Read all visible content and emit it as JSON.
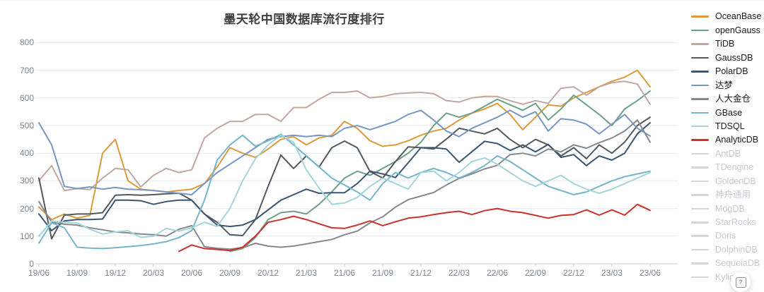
{
  "title": "墨天轮中国数据库流行度排行",
  "help_button": {
    "glyph": "?"
  },
  "axis_colors": {
    "grid": "#e4eaf2",
    "axis_line": "#c9cdd3",
    "tick_label": "#7d8592"
  },
  "chart_data": {
    "type": "line",
    "title": "墨天轮中国数据库流行度排行",
    "xlabel": "",
    "ylabel": "",
    "ylim": [
      0,
      800
    ],
    "y_ticks": [
      0,
      100,
      200,
      300,
      400,
      500,
      600,
      700,
      800
    ],
    "grid": true,
    "legend_position": "right",
    "x_tick_labels": [
      "19/06",
      "19/09",
      "19/12",
      "20/03",
      "20/06",
      "20/09",
      "20/12",
      "21/03",
      "21/06",
      "21/09",
      "21/12",
      "22/03",
      "22/06",
      "22/09",
      "22/12",
      "23/03",
      "23/06"
    ],
    "x_unit": "month (one data point per month, 19/06 through 23/06)",
    "series": [
      {
        "name": "OceanBase",
        "color": "#dd9a3c",
        "values": [
          205,
          160,
          180,
          165,
          175,
          400,
          450,
          300,
          270,
          265,
          260,
          265,
          270,
          290,
          350,
          420,
          400,
          385,
          415,
          450,
          460,
          430,
          455,
          465,
          515,
          490,
          445,
          425,
          430,
          445,
          465,
          480,
          490,
          520,
          545,
          560,
          580,
          540,
          485,
          530,
          575,
          570,
          600,
          620,
          640,
          660,
          675,
          700,
          640
        ]
      },
      {
        "name": "openGauss",
        "color": "#6ba187",
        "values": [
          null,
          null,
          null,
          null,
          null,
          null,
          null,
          null,
          null,
          null,
          null,
          null,
          null,
          null,
          null,
          45,
          55,
          95,
          160,
          185,
          190,
          180,
          215,
          260,
          310,
          335,
          320,
          345,
          370,
          400,
          440,
          500,
          545,
          530,
          545,
          570,
          595,
          575,
          555,
          580,
          520,
          560,
          610,
          575,
          540,
          500,
          560,
          590,
          625
        ]
      },
      {
        "name": "TiDB",
        "color": "#c4a6a1",
        "values": [
          300,
          355,
          265,
          272,
          268,
          310,
          345,
          340,
          278,
          320,
          345,
          330,
          340,
          455,
          490,
          515,
          515,
          540,
          540,
          515,
          565,
          565,
          595,
          620,
          620,
          625,
          600,
          605,
          615,
          618,
          620,
          615,
          590,
          585,
          600,
          605,
          605,
          590,
          577,
          590,
          580,
          635,
          640,
          610,
          640,
          655,
          660,
          650,
          577
        ]
      },
      {
        "name": "GaussDB",
        "color": "#54585e",
        "values": [
          310,
          90,
          176,
          180,
          180,
          185,
          248,
          250,
          248,
          250,
          253,
          255,
          230,
          180,
          150,
          105,
          102,
          160,
          280,
          393,
          345,
          390,
          350,
          420,
          444,
          420,
          334,
          310,
          370,
          423,
          420,
          415,
          451,
          490,
          480,
          470,
          490,
          450,
          420,
          450,
          430,
          390,
          420,
          380,
          430,
          400,
          440,
          500,
          530
        ]
      },
      {
        "name": "PolarDB",
        "color": "#3c5570",
        "values": [
          180,
          120,
          155,
          160,
          160,
          162,
          230,
          230,
          228,
          215,
          225,
          230,
          230,
          180,
          140,
          135,
          140,
          160,
          195,
          230,
          250,
          270,
          255,
          257,
          257,
          290,
          335,
          325,
          312,
          365,
          420,
          420,
          415,
          367,
          405,
          443,
          435,
          410,
          430,
          405,
          432,
          385,
          395,
          355,
          390,
          375,
          400,
          470,
          510
        ]
      },
      {
        "name": "达梦",
        "color": "#7896c4",
        "values": [
          510,
          430,
          280,
          272,
          278,
          270,
          276,
          270,
          268,
          265,
          260,
          255,
          250,
          290,
          330,
          360,
          390,
          420,
          450,
          460,
          465,
          460,
          465,
          460,
          490,
          500,
          485,
          500,
          515,
          540,
          555,
          520,
          480,
          460,
          490,
          510,
          530,
          555,
          530,
          550,
          480,
          525,
          520,
          505,
          470,
          505,
          540,
          490,
          462
        ]
      },
      {
        "name": "人大金仓",
        "color": "#85898f",
        "values": [
          225,
          150,
          143,
          140,
          130,
          123,
          115,
          112,
          108,
          105,
          100,
          125,
          138,
          62,
          56,
          53,
          58,
          74,
          64,
          60,
          64,
          72,
          80,
          88,
          105,
          118,
          148,
          170,
          205,
          232,
          245,
          258,
          285,
          309,
          325,
          343,
          356,
          395,
          400,
          390,
          415,
          405,
          430,
          418,
          438,
          455,
          480,
          520,
          440
        ]
      },
      {
        "name": "GBase",
        "color": "#74b4cd",
        "values": [
          75,
          148,
          130,
          60,
          57,
          55,
          58,
          62,
          66,
          72,
          80,
          95,
          120,
          230,
          375,
          430,
          465,
          425,
          445,
          468,
          430,
          390,
          350,
          310,
          285,
          260,
          230,
          290,
          330,
          310,
          330,
          345,
          330,
          310,
          330,
          355,
          390,
          370,
          340,
          310,
          280,
          265,
          250,
          260,
          280,
          300,
          315,
          325,
          335
        ]
      },
      {
        "name": "TDSQL",
        "color": "#a3d5da",
        "values": [
          100,
          155,
          150,
          148,
          125,
          108,
          115,
          120,
          95,
          100,
          128,
          118,
          130,
          150,
          135,
          200,
          300,
          380,
          430,
          465,
          440,
          340,
          274,
          215,
          220,
          240,
          280,
          310,
          290,
          270,
          330,
          335,
          300,
          330,
          370,
          383,
          360,
          330,
          300,
          280,
          300,
          320,
          290,
          270,
          255,
          270,
          290,
          310,
          330
        ]
      },
      {
        "name": "AnalyticDB",
        "color": "#cb312b",
        "values": [
          null,
          null,
          null,
          null,
          null,
          null,
          null,
          null,
          null,
          null,
          null,
          45,
          68,
          55,
          52,
          48,
          60,
          100,
          150,
          160,
          172,
          160,
          145,
          130,
          128,
          140,
          155,
          138,
          152,
          165,
          170,
          178,
          185,
          190,
          178,
          192,
          200,
          190,
          185,
          175,
          165,
          175,
          178,
          195,
          176,
          195,
          176,
          215,
          193
        ]
      }
    ],
    "inactive_legend": [
      "AntDB",
      "TDengine",
      "GoldenDB",
      "神舟通用",
      "MogDB",
      "StarRocks",
      "Doris",
      "DolphinDB",
      "SequoiaDB",
      "Kylig"
    ]
  }
}
